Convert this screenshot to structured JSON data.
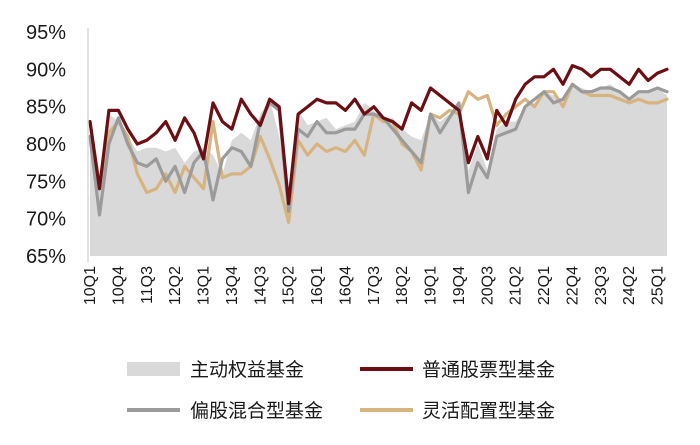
{
  "chart_data": {
    "type": "line",
    "ylim": [
      65,
      95
    ],
    "y_ticks": [
      "65%",
      "70%",
      "75%",
      "80%",
      "85%",
      "90%",
      "95%"
    ],
    "y_tick_values": [
      65,
      70,
      75,
      80,
      85,
      90,
      95
    ],
    "x_tick_labels": [
      "10Q1",
      "10Q4",
      "11Q3",
      "12Q2",
      "13Q1",
      "13Q4",
      "14Q3",
      "15Q2",
      "16Q1",
      "16Q4",
      "17Q3",
      "18Q2",
      "19Q1",
      "19Q4",
      "20Q3",
      "21Q2",
      "22Q1",
      "22Q4",
      "23Q3",
      "24Q2",
      "25Q1"
    ],
    "x_tick_every": 3,
    "legend_position": "bottom",
    "colors": {
      "equity_area": "#d9d9d9",
      "stock": "#6b0f14",
      "mixed": "#9b9b9b",
      "flexible": "#d7b47f"
    },
    "categories": [
      "10Q1",
      "10Q2",
      "10Q3",
      "10Q4",
      "11Q1",
      "11Q2",
      "11Q3",
      "11Q4",
      "12Q1",
      "12Q2",
      "12Q3",
      "12Q4",
      "13Q1",
      "13Q2",
      "13Q3",
      "13Q4",
      "14Q1",
      "14Q2",
      "14Q3",
      "14Q4",
      "15Q1",
      "15Q2",
      "15Q3",
      "15Q4",
      "16Q1",
      "16Q2",
      "16Q3",
      "16Q4",
      "17Q1",
      "17Q2",
      "17Q3",
      "17Q4",
      "18Q1",
      "18Q2",
      "18Q3",
      "18Q4",
      "19Q1",
      "19Q2",
      "19Q3",
      "19Q4",
      "20Q1",
      "20Q2",
      "20Q3",
      "20Q4",
      "21Q1",
      "21Q2",
      "21Q3",
      "21Q4",
      "22Q1",
      "22Q2",
      "22Q3",
      "22Q4",
      "23Q1",
      "23Q2",
      "23Q3",
      "23Q4",
      "24Q1",
      "24Q2",
      "24Q3",
      "24Q4",
      "25Q1",
      "25Q2"
    ],
    "series": [
      {
        "name": "主动权益基金",
        "style": "area",
        "values": [
          81,
          76,
          84,
          83,
          81,
          79,
          79.5,
          79.5,
          79,
          79.5,
          77.5,
          79,
          79.5,
          78.5,
          76,
          80.5,
          81.5,
          80.5,
          84,
          86,
          81,
          73,
          84.5,
          82.5,
          83,
          83.5,
          82,
          82.5,
          83,
          85.5,
          84.5,
          83,
          83.5,
          82,
          81,
          80.5,
          84,
          83,
          84,
          85,
          76.5,
          80,
          76.5,
          82,
          83,
          83,
          85,
          85.5,
          87,
          86.5,
          86,
          88,
          87.5,
          87,
          87.5,
          88,
          87,
          86,
          87,
          87,
          87.5,
          86.5
        ]
      },
      {
        "name": "普通股票型基金",
        "style": "line",
        "values": [
          83,
          74,
          84.5,
          84.5,
          82,
          80,
          80.5,
          81.5,
          83,
          80.5,
          83.5,
          81.5,
          78,
          85.5,
          83,
          82,
          86,
          84,
          82.5,
          86,
          85,
          72,
          84,
          85,
          86,
          85.5,
          85.5,
          84.5,
          86,
          84,
          85,
          83.5,
          83,
          82,
          85.5,
          84.5,
          87.5,
          86.5,
          85.5,
          84.5,
          77.5,
          81,
          78,
          84.5,
          82.5,
          86,
          88,
          89,
          89,
          90,
          88,
          90.5,
          90,
          89,
          90,
          90,
          89,
          88,
          90,
          88.5,
          89.5,
          90
        ]
      },
      {
        "name": "偏股混合型基金",
        "style": "line",
        "values": [
          81,
          70.5,
          80,
          83.5,
          80,
          77.5,
          77,
          78,
          75,
          77,
          73.5,
          77.5,
          79,
          72.5,
          78,
          79.5,
          79,
          77,
          83,
          85.5,
          84.5,
          71,
          82,
          81,
          83,
          81.5,
          81.5,
          82,
          82,
          84,
          84,
          83.5,
          82,
          80.5,
          79,
          77.5,
          84,
          81.5,
          83.5,
          85.5,
          73.5,
          77.5,
          75.5,
          81,
          81.5,
          82,
          85,
          86,
          87,
          85.5,
          86,
          88,
          87,
          87,
          87.5,
          87.5,
          87,
          86,
          87,
          87,
          87.5,
          87
        ]
      },
      {
        "name": "灵活配置型基金",
        "style": "line",
        "values": [
          83,
          74.5,
          81.5,
          83,
          81,
          76,
          73.5,
          74,
          76,
          73.5,
          77,
          75.5,
          74,
          83,
          75.5,
          76,
          76,
          77,
          81,
          78,
          74.5,
          69.5,
          80.5,
          78.5,
          80,
          79,
          79.5,
          79,
          80.5,
          78.5,
          84,
          83,
          83,
          80,
          79,
          76.5,
          84,
          83.5,
          84.5,
          84,
          87,
          86,
          86.5,
          82.5,
          84,
          85,
          86,
          85,
          87,
          87,
          85,
          88,
          87,
          86.5,
          86.5,
          86.5,
          86,
          85.5,
          86,
          85.5,
          85.5,
          86
        ]
      }
    ]
  }
}
